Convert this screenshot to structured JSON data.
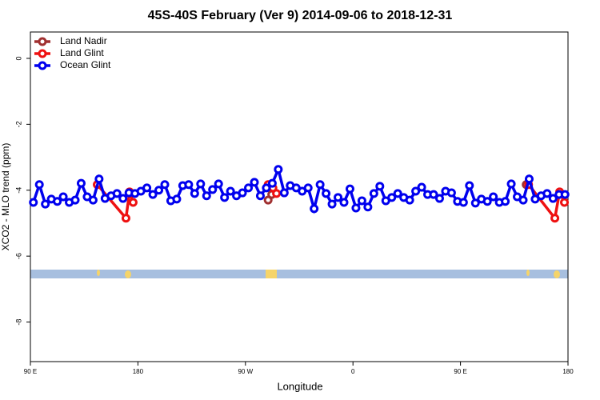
{
  "chart_data": {
    "type": "line",
    "title": "45S-40S February (Ver 9)   2014-09-06 to 2018-12-31",
    "x_label": "Longitude",
    "y_label": "XCO2 - MLO trend (ppm)",
    "xlim": [
      90,
      540
    ],
    "xticks": [
      {
        "value": 90,
        "label": "90 E"
      },
      180,
      {
        "value": 270,
        "label": "90 W"
      },
      {
        "value": 360,
        "label": "0"
      },
      {
        "value": 450,
        "label": "90 E"
      },
      {
        "value": 540,
        "label": "180"
      }
    ],
    "ylim": [
      -9.2,
      0.8
    ],
    "yticks": [
      0,
      -2,
      -4,
      -6,
      -8
    ],
    "legend": "top-left",
    "series": [
      {
        "name": "Land Nadir",
        "color": "#a03030",
        "x": [
          146,
          null,
          289,
          292,
          null,
          505
        ],
        "values": [
          -3.83,
          null,
          -4.3,
          -4.13,
          null,
          -3.83
        ]
      },
      {
        "name": "Land Glint",
        "color": "#ee1111",
        "x": [
          146,
          170,
          173,
          176,
          null,
          289,
          293,
          296,
          null,
          507,
          529,
          533,
          537
        ],
        "values": [
          -3.83,
          -4.85,
          -4.05,
          -4.37,
          null,
          -3.83,
          -3.93,
          -4.1,
          null,
          -3.83,
          -4.85,
          -4.05,
          -4.37
        ]
      },
      {
        "name": "Ocean Glint",
        "color": "#0000ee",
        "x": [
          92.5,
          97.5,
          102.5,
          107.5,
          112.5,
          117.5,
          122.5,
          127.5,
          132.5,
          137.5,
          142.5,
          147.5,
          152.5,
          157.5,
          162.5,
          167.5,
          172.5,
          177.5,
          182.5,
          187.5,
          192.5,
          197.5,
          202.5,
          207.5,
          212.5,
          217.5,
          222.5,
          227.5,
          232.5,
          237.5,
          242.5,
          247.5,
          252.5,
          257.5,
          262.5,
          267.5,
          272.5,
          277.5,
          282.5,
          287.5,
          292.5,
          297.5,
          302.5,
          307.5,
          312.5,
          317.5,
          322.5,
          327.5,
          332.5,
          337.5,
          342.5,
          347.5,
          352.5,
          357.5,
          362.5,
          367.5,
          372.5,
          377.5,
          382.5,
          387.5,
          392.5,
          397.5,
          402.5,
          407.5,
          412.5,
          417.5,
          422.5,
          427.5,
          432.5,
          437.5,
          442.5,
          447.5,
          452.5,
          457.5,
          462.5,
          467.5,
          472.5,
          477.5,
          482.5,
          487.5,
          492.5,
          497.5,
          502.5,
          507.5,
          512.5,
          517.5,
          522.5,
          527.5,
          532.5,
          537.5
        ],
        "values": [
          -4.37,
          -3.83,
          -4.42,
          -4.27,
          -4.34,
          -4.2,
          -4.37,
          -4.3,
          -3.79,
          -4.2,
          -4.3,
          -3.66,
          -4.25,
          -4.17,
          -4.1,
          -4.25,
          -4.08,
          -4.1,
          -4.03,
          -3.93,
          -4.13,
          -4.0,
          -3.83,
          -4.32,
          -4.27,
          -3.86,
          -3.83,
          -4.1,
          -3.81,
          -4.17,
          -3.98,
          -3.81,
          -4.22,
          -4.03,
          -4.17,
          -4.08,
          -3.93,
          -3.76,
          -4.17,
          -3.93,
          -3.79,
          -3.37,
          -4.08,
          -3.86,
          -3.93,
          -4.03,
          -3.93,
          -4.56,
          -3.83,
          -4.1,
          -4.42,
          -4.22,
          -4.37,
          -3.96,
          -4.54,
          -4.32,
          -4.51,
          -4.1,
          -3.88,
          -4.32,
          -4.22,
          -4.1,
          -4.22,
          -4.3,
          -4.03,
          -3.91,
          -4.13,
          -4.13,
          -4.25,
          -4.03,
          -4.08,
          -4.34,
          -4.37,
          -3.86,
          -4.39,
          -4.27,
          -4.34,
          -4.2,
          -4.37,
          -4.34,
          -3.81,
          -4.2,
          -4.3,
          -3.66,
          -4.27,
          -4.17,
          -4.1,
          -4.25,
          -4.13,
          -4.13
        ]
      }
    ]
  }
}
